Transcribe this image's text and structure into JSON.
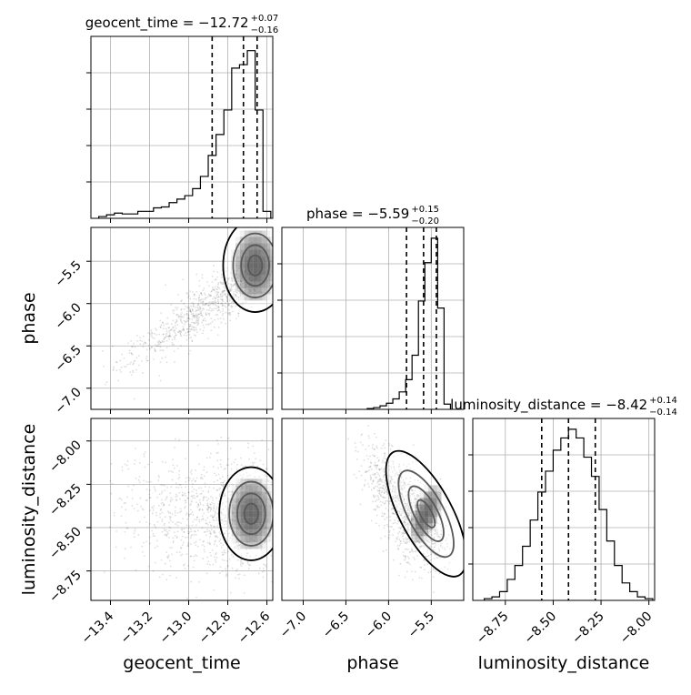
{
  "chart_data": {
    "type": "corner",
    "parameters": [
      "geocent_time",
      "phase",
      "luminosity_distance"
    ],
    "grid": true,
    "panels": [
      {
        "kind": "histogram",
        "param": "geocent_time",
        "title": {
          "base": "geocent_time = −12.72",
          "sup": "+0.07",
          "sub": "−0.16"
        },
        "xlim": [
          -13.5,
          -12.57
        ],
        "ylim": [
          0,
          1.0
        ],
        "bin_edges": [
          -13.46,
          -13.42,
          -13.38,
          -13.34,
          -13.3,
          -13.26,
          -13.22,
          -13.18,
          -13.14,
          -13.1,
          -13.06,
          -13.02,
          -12.98,
          -12.94,
          -12.9,
          -12.86,
          -12.82,
          -12.78,
          -12.74,
          -12.7,
          -12.66,
          -12.62,
          -12.58
        ],
        "counts": [
          0.01,
          0.02,
          0.03,
          0.025,
          0.025,
          0.04,
          0.04,
          0.06,
          0.065,
          0.09,
          0.11,
          0.13,
          0.17,
          0.24,
          0.36,
          0.48,
          0.62,
          0.86,
          0.88,
          0.96,
          0.62,
          0.04
        ],
        "quantiles": [
          -12.88,
          -12.72,
          -12.65
        ],
        "xticks": [
          -13.4,
          -13.2,
          -13.0,
          -12.8,
          -12.6
        ]
      },
      {
        "kind": "2d",
        "x": "geocent_time",
        "y": "phase",
        "xlim": [
          -13.5,
          -12.57
        ],
        "ylim": [
          -7.25,
          -5.1
        ],
        "yticks": [
          -5.5,
          -6.0,
          -6.5,
          -7.0
        ],
        "ytick_labels": [
          "−5.5",
          "−6.0",
          "−6.5",
          "−7.0"
        ],
        "peak": [
          -12.66,
          -5.55
        ]
      },
      {
        "kind": "histogram",
        "param": "phase",
        "title": {
          "base": "phase = −5.59",
          "sup": "+0.15",
          "sub": "−0.20"
        },
        "xlim": [
          -7.25,
          -5.12
        ],
        "ylim": [
          0,
          1.0
        ],
        "bin_edges": [
          -6.25,
          -6.175,
          -6.1,
          -6.025,
          -5.95,
          -5.875,
          -5.8,
          -5.725,
          -5.65,
          -5.575,
          -5.5,
          -5.425,
          -5.35,
          -5.275
        ],
        "counts": [
          0.005,
          0.01,
          0.02,
          0.035,
          0.06,
          0.1,
          0.17,
          0.31,
          0.62,
          0.84,
          0.98,
          0.58,
          0.03
        ],
        "quantiles": [
          -5.79,
          -5.59,
          -5.44
        ],
        "xticks": [
          -7.0,
          -6.5,
          -6.0,
          -5.5
        ]
      },
      {
        "kind": "2d",
        "x": "geocent_time",
        "y": "luminosity_distance",
        "xlim": [
          -13.5,
          -12.57
        ],
        "ylim": [
          -8.92,
          -7.87
        ],
        "yticks": [
          -8.0,
          -8.25,
          -8.5,
          -8.75
        ],
        "ytick_labels": [
          "−8.00",
          "−8.25",
          "−8.50",
          "−8.75"
        ],
        "peak": [
          -12.68,
          -8.42
        ]
      },
      {
        "kind": "2d",
        "x": "phase",
        "y": "luminosity_distance",
        "xlim": [
          -7.25,
          -5.12
        ],
        "ylim": [
          -8.92,
          -7.87
        ],
        "peak": [
          -5.56,
          -8.42
        ]
      },
      {
        "kind": "histogram",
        "param": "luminosity_distance",
        "title": {
          "base": "luminosity_distance = −8.42",
          "sup": "+0.14",
          "sub": "−0.14"
        },
        "xlim": [
          -8.92,
          -7.97
        ],
        "ylim": [
          0,
          1.0
        ],
        "bin_edges": [
          -8.86,
          -8.82,
          -8.78,
          -8.74,
          -8.7,
          -8.66,
          -8.62,
          -8.58,
          -8.54,
          -8.5,
          -8.46,
          -8.42,
          -8.38,
          -8.34,
          -8.3,
          -8.26,
          -8.22,
          -8.18,
          -8.14,
          -8.1,
          -8.06,
          -8.02,
          -7.98
        ],
        "counts": [
          0.01,
          0.02,
          0.05,
          0.12,
          0.2,
          0.31,
          0.46,
          0.62,
          0.74,
          0.86,
          0.93,
          0.98,
          0.93,
          0.82,
          0.71,
          0.52,
          0.34,
          0.2,
          0.1,
          0.05,
          0.02,
          0.01
        ],
        "quantiles": [
          -8.56,
          -8.42,
          -8.28
        ],
        "xticks": [
          -8.75,
          -8.5,
          -8.25,
          -8.0
        ]
      }
    ],
    "bottom_xtick_labels": {
      "geocent_time": [
        "−13.4",
        "−13.2",
        "−13.0",
        "−12.8",
        "−12.6"
      ],
      "phase": [
        "−7.0",
        "−6.5",
        "−6.0",
        "−5.5"
      ],
      "luminosity_distance": [
        "−8.75",
        "−8.50",
        "−8.25",
        "−8.00"
      ]
    },
    "axis_labels": {
      "x": [
        "geocent_time",
        "phase",
        "luminosity_distance"
      ],
      "y": [
        "phase",
        "luminosity_distance"
      ]
    }
  }
}
